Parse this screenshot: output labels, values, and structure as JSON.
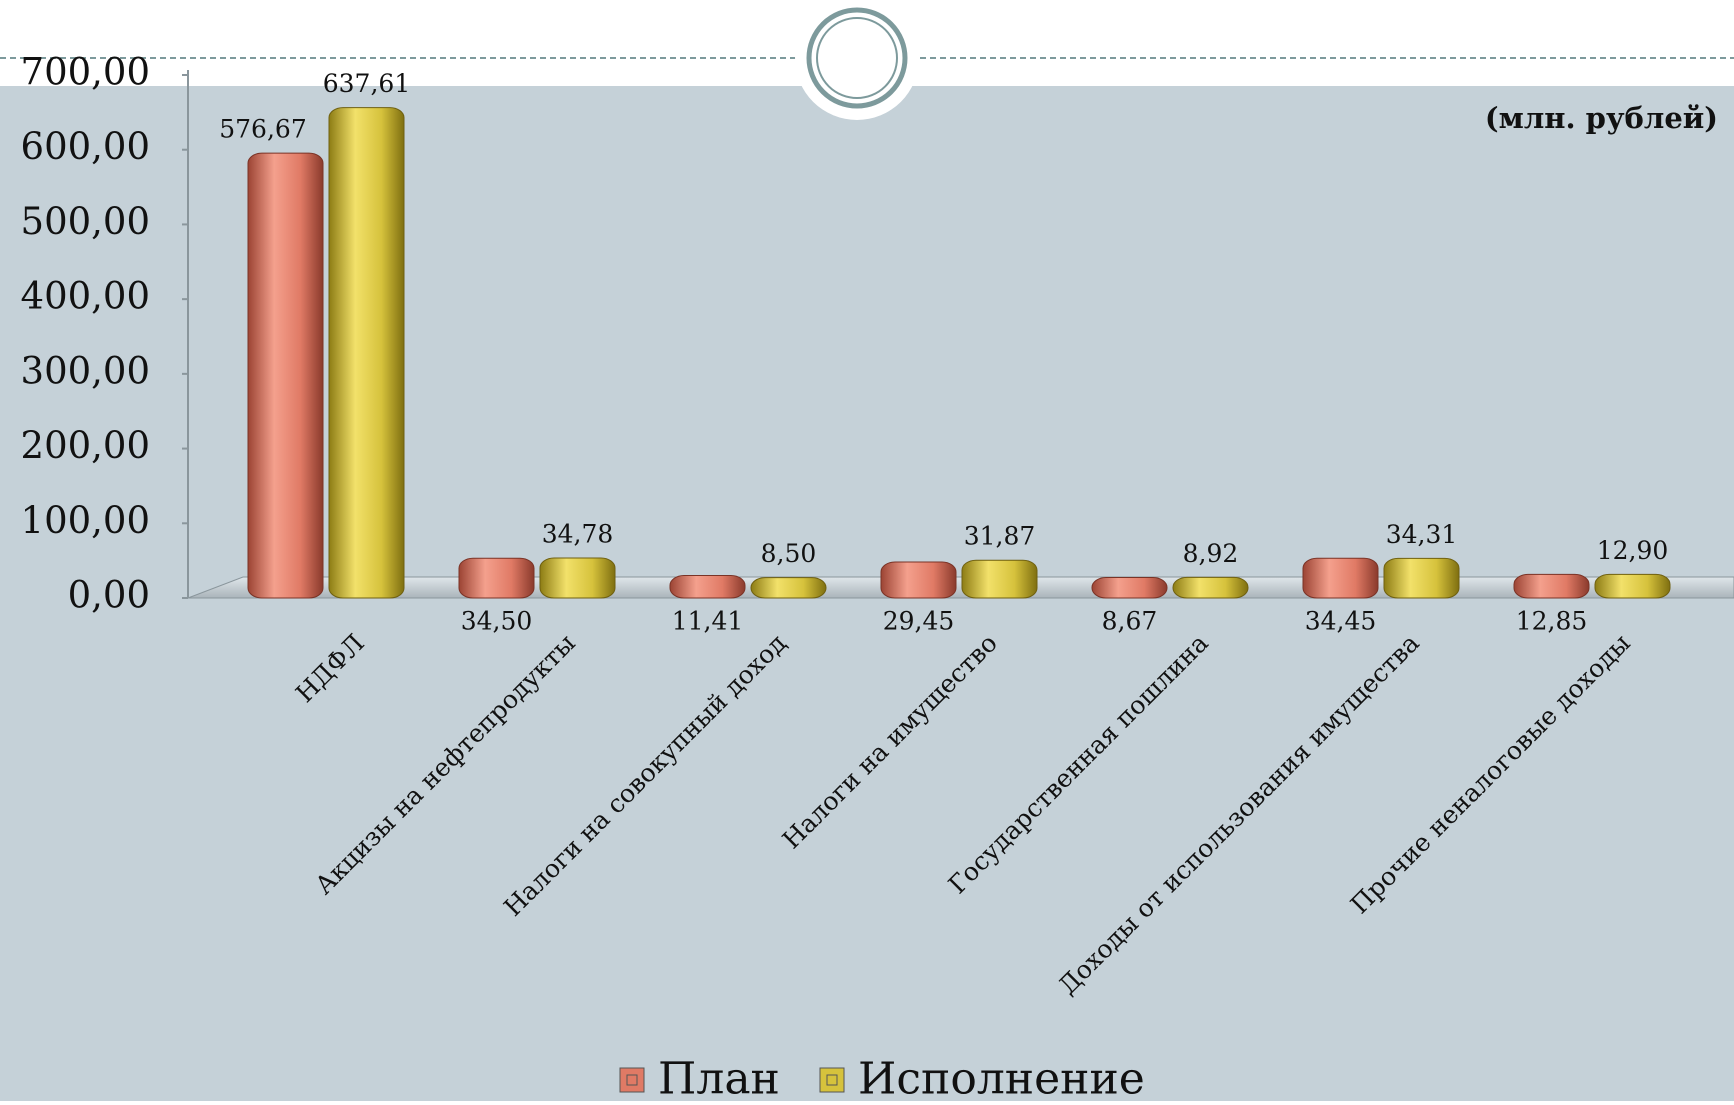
{
  "chart_data": {
    "type": "bar",
    "unit_label": "(млн. рублей)",
    "categories": [
      "НДФЛ",
      "Акцизы на нефтепродукты",
      "Налоги на совокупный доход",
      "Налоги на имущество",
      "Государственная пошлина",
      "Доходы от использования имущества",
      "Прочие неналоговые доходы"
    ],
    "series": [
      {
        "name": "План",
        "color": "#e07a65",
        "values": [
          576.67,
          34.5,
          11.41,
          29.45,
          8.67,
          34.45,
          12.85
        ],
        "value_labels": [
          "576,67",
          "34,50",
          "11,41",
          "29,45",
          "8,67",
          "34,45",
          "12,85"
        ]
      },
      {
        "name": "Исполнение",
        "color": "#d6c23c",
        "values": [
          637.61,
          34.78,
          8.5,
          31.87,
          8.92,
          34.31,
          12.9
        ],
        "value_labels": [
          "637,61",
          "34,78",
          "8,50",
          "31,87",
          "8,92",
          "34,31",
          "12,90"
        ]
      }
    ],
    "ylim": [
      0,
      700
    ],
    "yticks": [
      {
        "value": 0,
        "label": "0,00"
      },
      {
        "value": 100,
        "label": "100,00"
      },
      {
        "value": 200,
        "label": "200,00"
      },
      {
        "value": 300,
        "label": "300,00"
      },
      {
        "value": 400,
        "label": "400,00"
      },
      {
        "value": 500,
        "label": "500,00"
      },
      {
        "value": 600,
        "label": "600,00"
      },
      {
        "value": 700,
        "label": "700,00"
      }
    ],
    "legend": "bottom"
  }
}
